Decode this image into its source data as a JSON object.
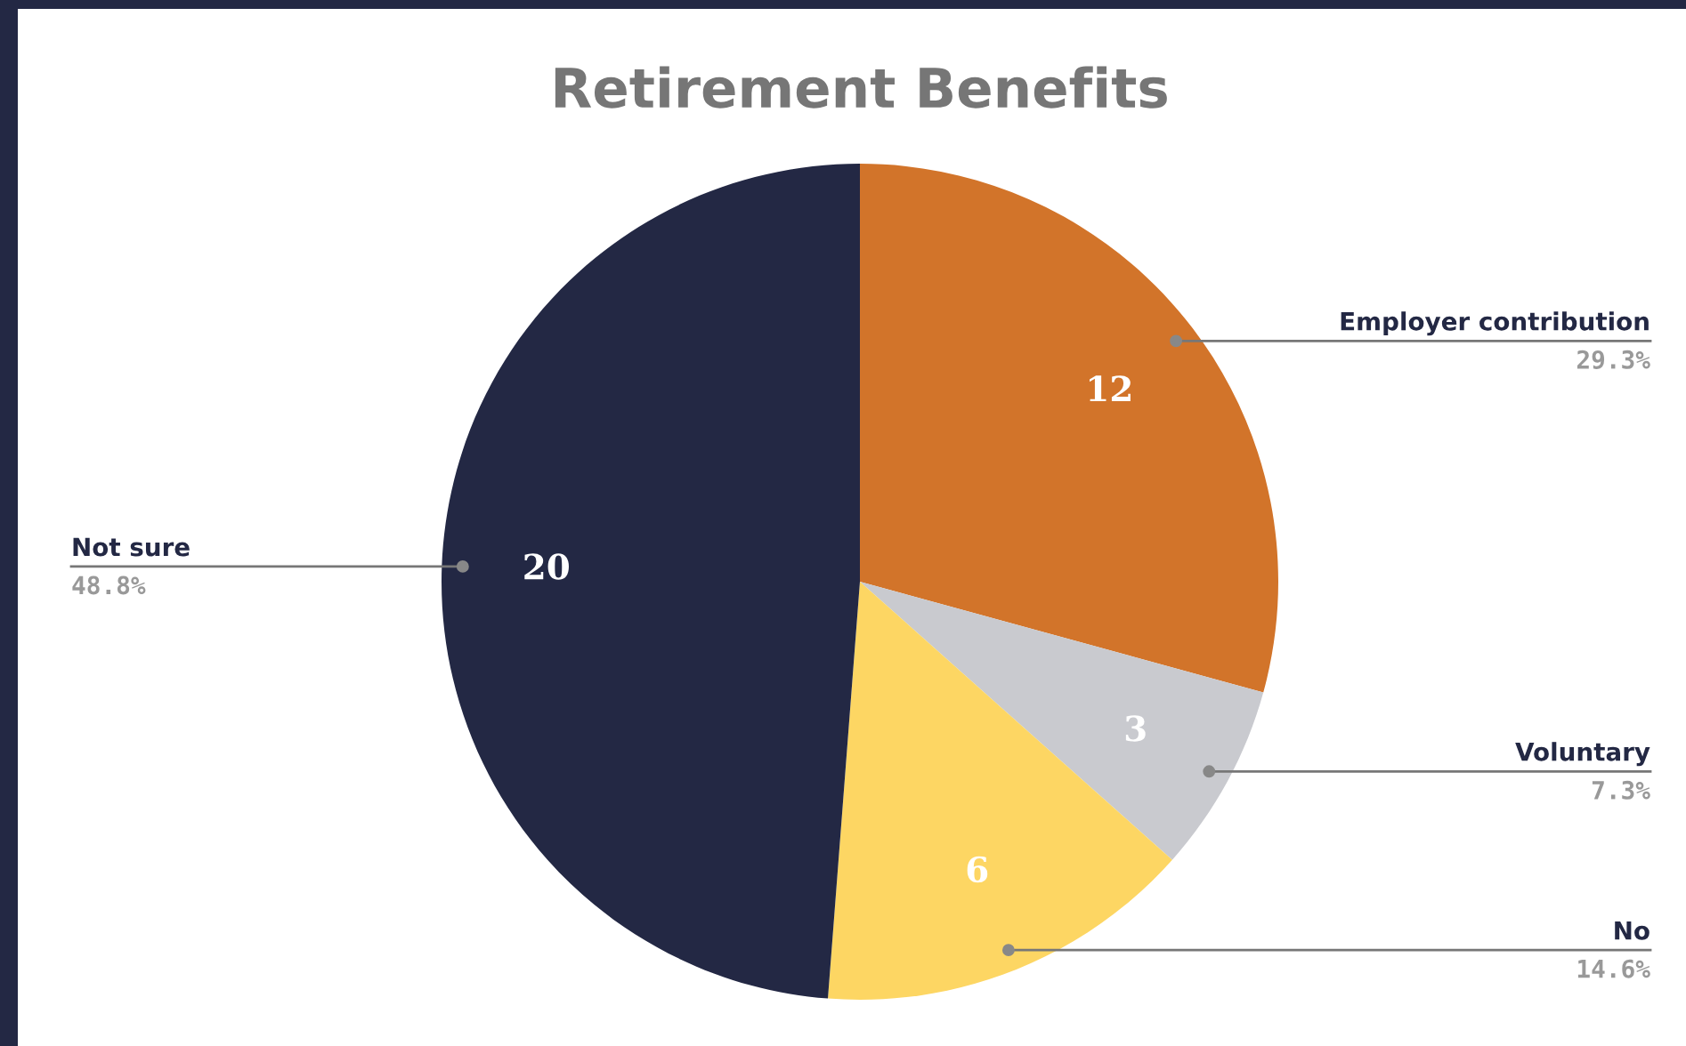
{
  "chart_data": {
    "type": "pie",
    "title": "Retirement Benefits",
    "categories": [
      "Employer contribution",
      "Voluntary",
      "No",
      "Not sure"
    ],
    "values": [
      12,
      3,
      6,
      20
    ],
    "colors": [
      "#d2742a",
      "#c9cacf",
      "#fdd663",
      "#232844"
    ],
    "data_labels": true,
    "annotations": [
      "29.3%",
      "7.3%",
      "14.6%",
      "48.8%"
    ]
  }
}
